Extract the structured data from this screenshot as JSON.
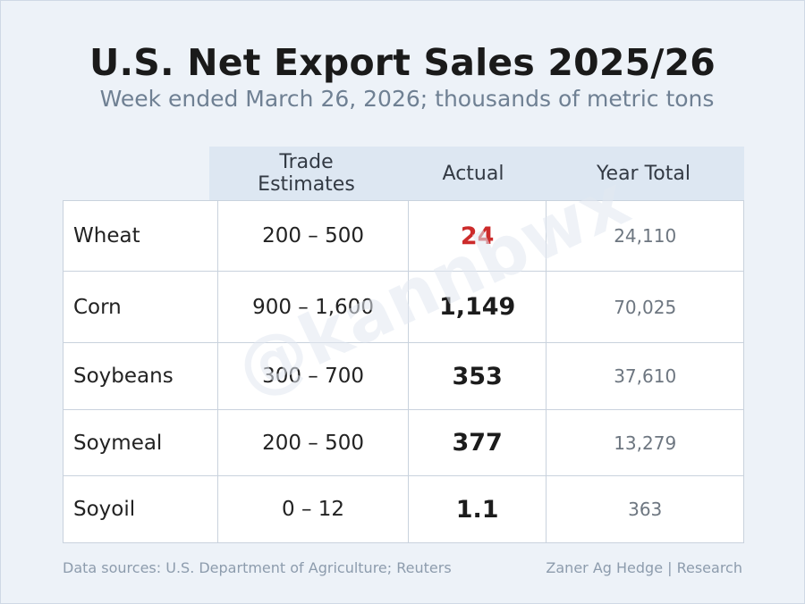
{
  "title": "U.S. Net Export Sales 2025/26",
  "subtitle": "Week ended March 26, 2026; thousands of metric tons",
  "watermark": "@kannbwx",
  "table": {
    "headers": {
      "estimates_line1": "Trade",
      "estimates_line2": "Estimates",
      "actual": "Actual",
      "year_total": "Year Total"
    },
    "rows": [
      {
        "commodity": "Wheat",
        "estimates": "200 – 500",
        "actual": "24",
        "year_total": "24,110",
        "actual_highlight": true
      },
      {
        "commodity": "Corn",
        "estimates": "900 – 1,600",
        "actual": "1,149",
        "year_total": "70,025",
        "actual_highlight": false
      },
      {
        "commodity": "Soybeans",
        "estimates": "300 – 700",
        "actual": "353",
        "year_total": "37,610",
        "actual_highlight": false
      },
      {
        "commodity": "Soymeal",
        "estimates": "200 – 500",
        "actual": "377",
        "year_total": "13,279",
        "actual_highlight": false
      },
      {
        "commodity": "Soyoil",
        "estimates": "0 – 12",
        "actual": "1.1",
        "year_total": "363",
        "actual_highlight": false
      }
    ]
  },
  "footer": {
    "sources": "Data sources: U.S. Department of Agriculture; Reuters",
    "credit": "Zaner Ag Hedge | Research"
  },
  "colors": {
    "background": "#edf2f8",
    "header_band": "#dde7f2",
    "highlight_red": "#cc2b2b",
    "footer_text": "#8d9cad"
  }
}
